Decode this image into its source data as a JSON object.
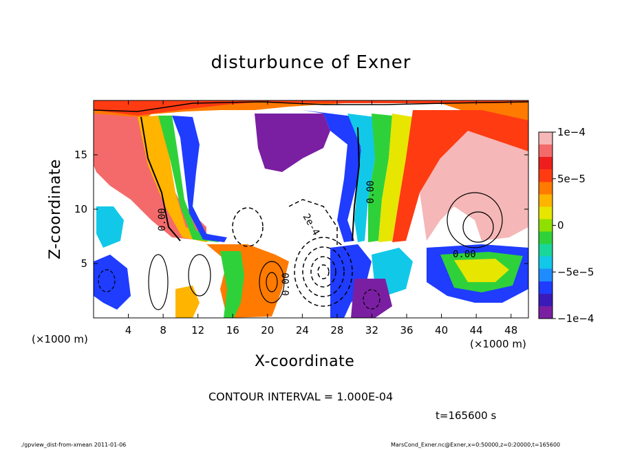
{
  "chart_data": {
    "type": "heatmap",
    "title": "disturbunce of Exner",
    "xlabel": "X-coordinate",
    "ylabel": "Z-coordinate",
    "x_unit": "(×1000 m)",
    "x_ticks": [
      4,
      8,
      12,
      16,
      20,
      24,
      28,
      32,
      36,
      40,
      44,
      48
    ],
    "y_ticks": [
      5,
      10,
      15
    ],
    "xlim": [
      0,
      50
    ],
    "ylim": [
      0,
      20
    ],
    "colorbar": {
      "range": [
        -0.0001,
        0.0001
      ],
      "tick_values": [
        -0.0001,
        -5e-05,
        0,
        5e-05,
        0.0001
      ],
      "tick_labels": [
        "−1e−4",
        "−5e−5",
        "0",
        "5e−5",
        "1e−4"
      ],
      "colors": [
        "#7a1fa2",
        "#3a1bb8",
        "#1f3cff",
        "#1e8cff",
        "#12c8e8",
        "#19d69a",
        "#2fd13a",
        "#8fe000",
        "#e6e600",
        "#ffb400",
        "#ff7a00",
        "#ff3b12",
        "#ef1e1e",
        "#f46a6a",
        "#f5b7b7"
      ]
    },
    "contour_labels": [
      "0.00",
      "0.00",
      "2e-4",
      "0.00",
      "0.00"
    ],
    "contour_interval": "CONTOUR INTERVAL = 1.000E-04",
    "time": "t=165600 s"
  },
  "footer": {
    "left": "./gpview_dist-from-xmean  2011-01-06",
    "right": "MarsCond_Exner.nc@Exner,x=0:50000,z=0:20000,t=165600"
  }
}
